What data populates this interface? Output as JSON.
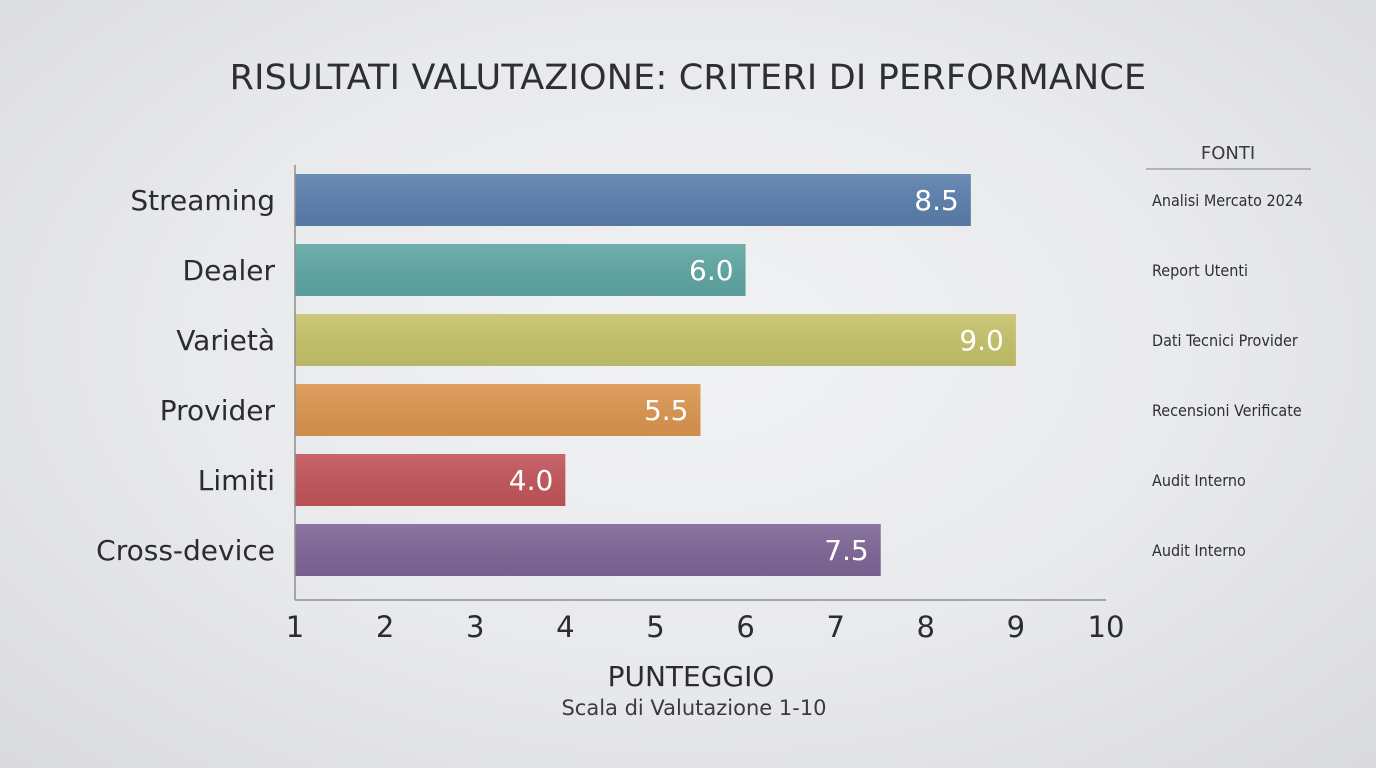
{
  "chart_data": {
    "type": "bar",
    "orientation": "horizontal",
    "title": "RISULTATI VALUTAZIONE: CRITERI DI PERFORMANCE",
    "categories": [
      "Streaming",
      "Dealer",
      "Varietà",
      "Provider",
      "Limiti",
      "Cross-device"
    ],
    "values": [
      8.5,
      6.0,
      9.0,
      5.5,
      4.0,
      7.5
    ],
    "value_labels": [
      "8.5",
      "6.0",
      "9.0",
      "5.5",
      "4.0",
      "7.5"
    ],
    "colors": [
      "#5b7fad",
      "#5fa7a3",
      "#c6c36a",
      "#dc9650",
      "#c2555a",
      "#7f6697"
    ],
    "xlabel": "PUNTEGGIO",
    "xlabel_sub": "Scala di Valutazione 1-10",
    "xlim": [
      1,
      10
    ],
    "xticks": [
      "1",
      "2",
      "3",
      "4",
      "5",
      "6",
      "7",
      "8",
      "9",
      "10"
    ],
    "grid": false,
    "sources": {
      "header": "FONTI",
      "items": [
        "Analisi Mercato 2024",
        "Report Utenti",
        "Dati Tecnici Provider",
        "Recensioni Verificate",
        "Audit Interno",
        "Audit Interno"
      ]
    }
  }
}
